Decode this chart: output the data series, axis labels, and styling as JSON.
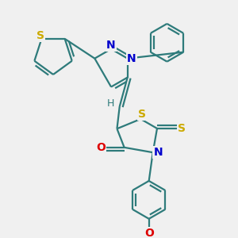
{
  "bg_color": "#f0f0f0",
  "atom_colors": {
    "S": "#ccaa00",
    "N": "#0000cc",
    "O": "#dd0000",
    "C": "#2e7b7b",
    "H": "#2e7b7b",
    "default": "#2e7b7b"
  },
  "bond_color": "#2e7b7b",
  "bond_width": 1.6,
  "font_size_atom": 10,
  "font_size_small": 8
}
